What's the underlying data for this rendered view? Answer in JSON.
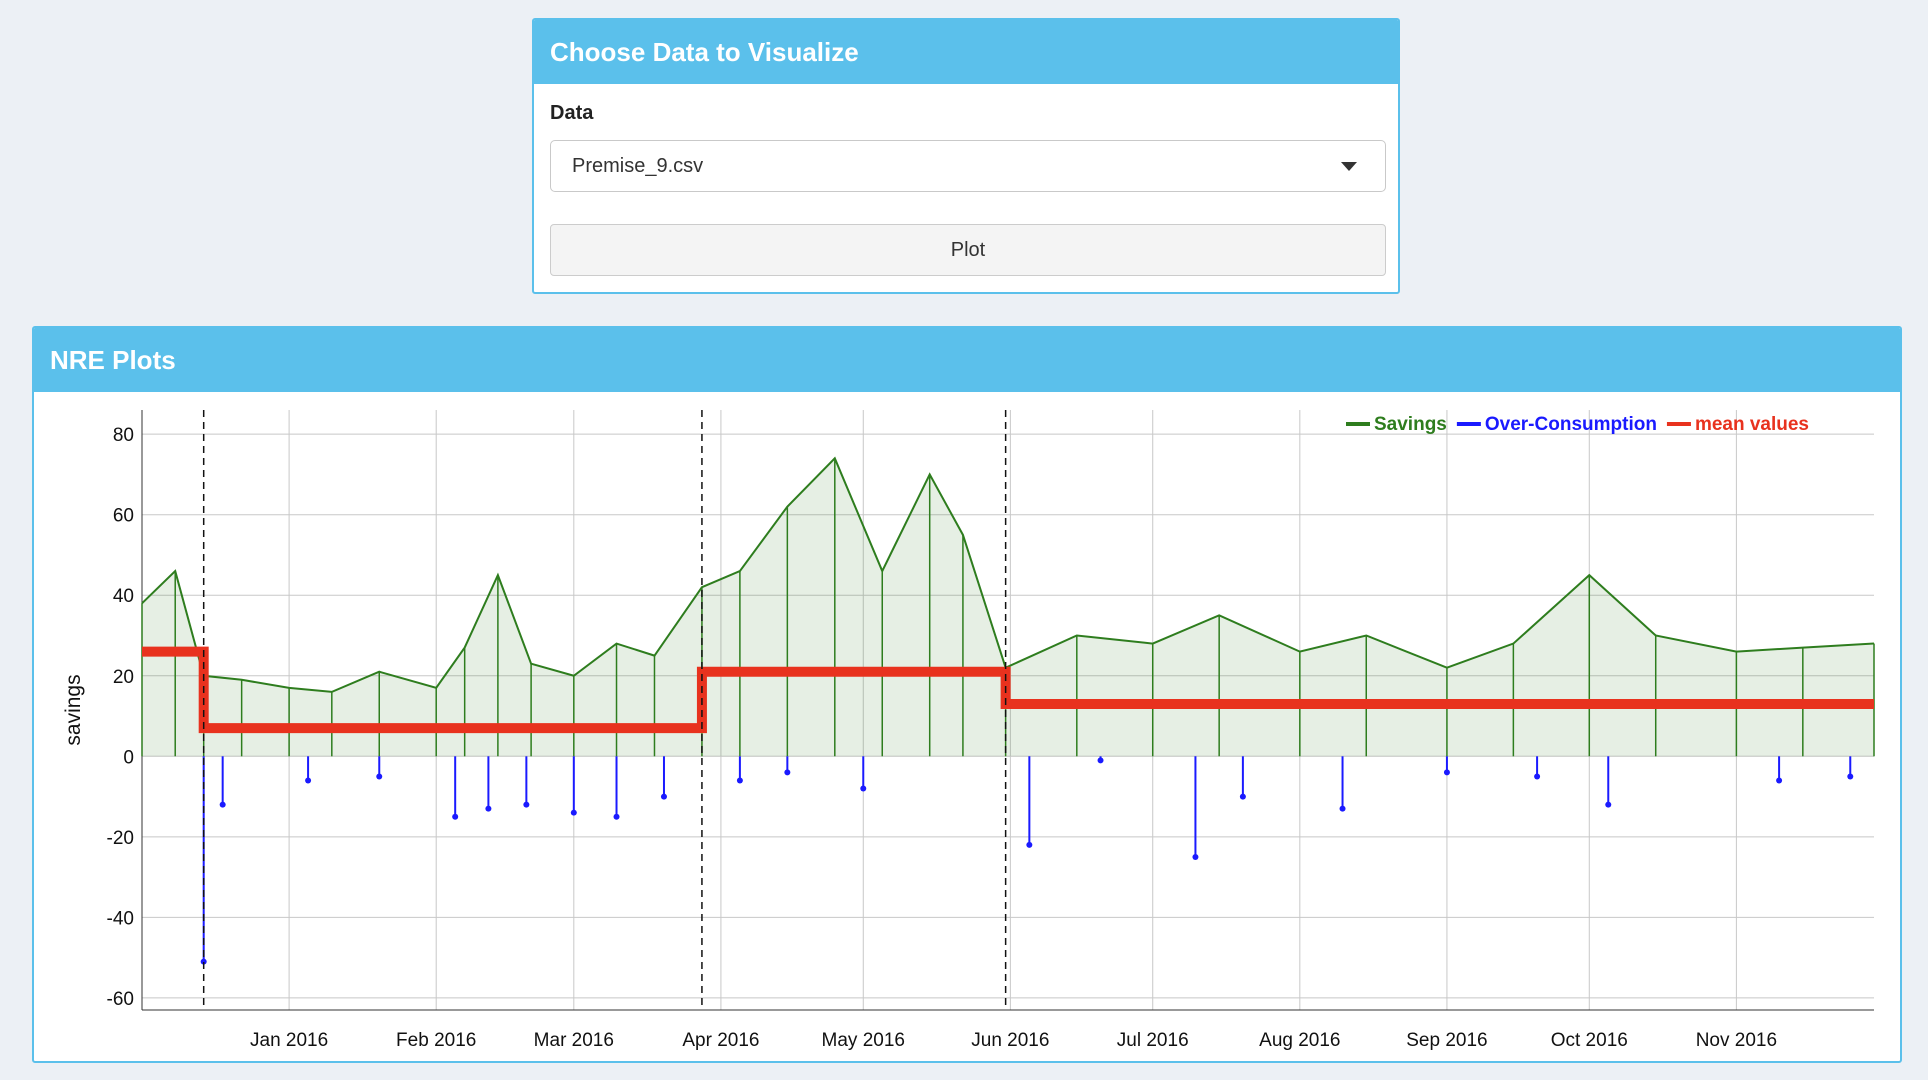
{
  "controls": {
    "title": "Choose Data to Visualize",
    "data_label": "Data",
    "selected_file": "Premise_9.csv",
    "plot_button": "Plot"
  },
  "plots_panel": {
    "title": "NRE Plots"
  },
  "colors": {
    "header": "#5bc0eb",
    "savings": "#2e7d1e",
    "over_consumption": "#1a1aff",
    "mean": "#e8321e"
  },
  "chart_data": {
    "type": "line",
    "x_type": "date",
    "x_range": [
      "2015-12-01",
      "2016-11-30"
    ],
    "ylim": [
      -63,
      86
    ],
    "ylabel": "savings",
    "grid": true,
    "legend_position": "top-right",
    "x_ticks": [
      {
        "date": "2016-01-01",
        "label": "Jan 2016"
      },
      {
        "date": "2016-02-01",
        "label": "Feb 2016"
      },
      {
        "date": "2016-03-01",
        "label": "Mar 2016"
      },
      {
        "date": "2016-04-01",
        "label": "Apr 2016"
      },
      {
        "date": "2016-05-01",
        "label": "May 2016"
      },
      {
        "date": "2016-06-01",
        "label": "Jun 2016"
      },
      {
        "date": "2016-07-01",
        "label": "Jul 2016"
      },
      {
        "date": "2016-08-01",
        "label": "Aug 2016"
      },
      {
        "date": "2016-09-01",
        "label": "Sep 2016"
      },
      {
        "date": "2016-10-01",
        "label": "Oct 2016"
      },
      {
        "date": "2016-11-01",
        "label": "Nov 2016"
      }
    ],
    "y_ticks": [
      80,
      60,
      40,
      20,
      0,
      -20,
      -40,
      -60
    ],
    "change_points": [
      "2015-12-14",
      "2016-03-28",
      "2016-05-31"
    ],
    "series": [
      {
        "name": "Savings",
        "color": "#2e7d1e",
        "x": [
          "2015-12-01",
          "2015-12-08",
          "2015-12-14",
          "2015-12-22",
          "2016-01-01",
          "2016-01-10",
          "2016-01-20",
          "2016-02-01",
          "2016-02-07",
          "2016-02-14",
          "2016-02-21",
          "2016-03-01",
          "2016-03-10",
          "2016-03-18",
          "2016-03-28",
          "2016-04-05",
          "2016-04-15",
          "2016-04-25",
          "2016-05-05",
          "2016-05-15",
          "2016-05-22",
          "2016-05-31",
          "2016-06-15",
          "2016-07-01",
          "2016-07-15",
          "2016-08-01",
          "2016-08-15",
          "2016-09-01",
          "2016-09-15",
          "2016-10-01",
          "2016-10-15",
          "2016-11-01",
          "2016-11-15",
          "2016-11-30"
        ],
        "y": [
          38,
          46,
          20,
          19,
          17,
          16,
          21,
          17,
          27,
          45,
          23,
          20,
          28,
          25,
          42,
          46,
          62,
          74,
          46,
          70,
          55,
          22,
          30,
          28,
          35,
          26,
          30,
          22,
          28,
          45,
          30,
          26,
          27,
          28
        ]
      },
      {
        "name": "Over-Consumption",
        "color": "#1a1aff",
        "x": [
          "2015-12-14",
          "2015-12-18",
          "2016-01-05",
          "2016-01-20",
          "2016-02-05",
          "2016-02-12",
          "2016-02-20",
          "2016-03-01",
          "2016-03-10",
          "2016-03-20",
          "2016-04-05",
          "2016-04-15",
          "2016-05-01",
          "2016-06-05",
          "2016-06-20",
          "2016-07-10",
          "2016-07-20",
          "2016-08-10",
          "2016-09-01",
          "2016-09-20",
          "2016-10-05",
          "2016-11-10",
          "2016-11-25"
        ],
        "y": [
          -51,
          -12,
          -6,
          -5,
          -15,
          -13,
          -12,
          -14,
          -15,
          -10,
          -6,
          -4,
          -8,
          -22,
          -1,
          -25,
          -10,
          -13,
          -4,
          -5,
          -12,
          -6,
          -5
        ]
      },
      {
        "name": "mean values",
        "color": "#e8321e",
        "x": [
          "2015-12-01",
          "2015-12-14",
          "2016-03-28",
          "2016-05-31",
          "2016-11-30"
        ],
        "y": [
          26,
          7,
          21,
          13,
          13
        ]
      }
    ]
  }
}
